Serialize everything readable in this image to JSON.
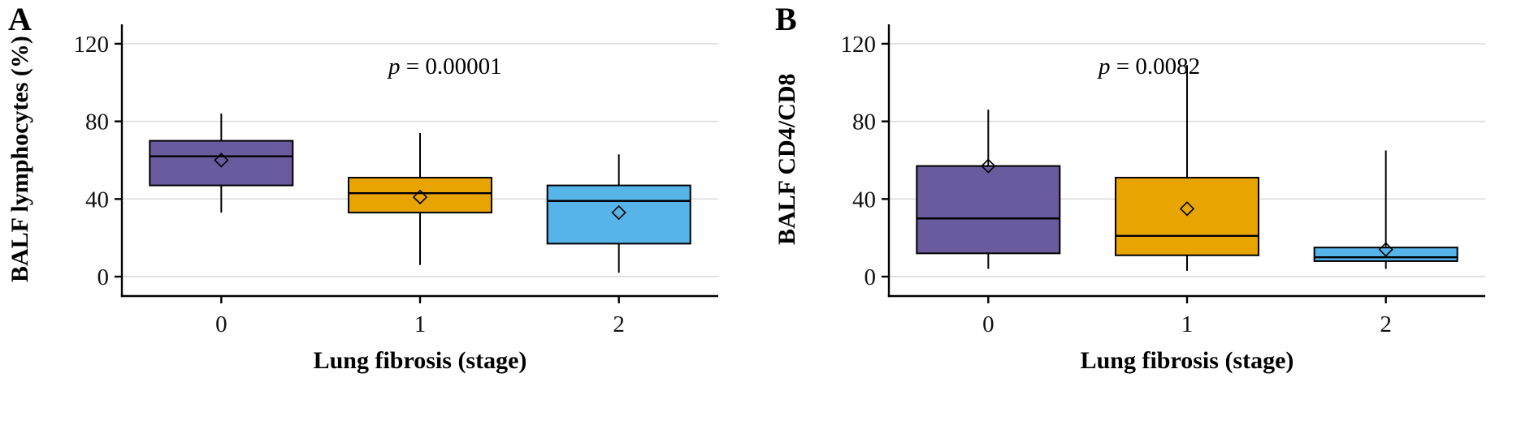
{
  "chart_data": [
    {
      "type": "box",
      "panel_label": "A",
      "xlabel": "Lung fibrosis (stage)",
      "ylabel": "BALF lymphocytes (%)",
      "p_var": "p",
      "p_rest": " = 0.00001",
      "categories": [
        "0",
        "1",
        "2"
      ],
      "yticks": [
        0,
        40,
        80,
        120
      ],
      "ylim": [
        -10,
        130
      ],
      "grid": true,
      "legend": "none",
      "series": [
        {
          "category": "0",
          "color": "#6A5A9E",
          "whisker_low": 33,
          "q1": 47,
          "median": 62,
          "q3": 70,
          "whisker_high": 84,
          "mean": 60
        },
        {
          "category": "1",
          "color": "#E8A400",
          "whisker_low": 6,
          "q1": 33,
          "median": 43,
          "q3": 51,
          "whisker_high": 74,
          "mean": 41
        },
        {
          "category": "2",
          "color": "#56B4E9",
          "whisker_low": 2,
          "q1": 17,
          "median": 39,
          "q3": 47,
          "whisker_high": 63,
          "mean": 33
        }
      ]
    },
    {
      "type": "box",
      "panel_label": "B",
      "xlabel": "Lung fibrosis (stage)",
      "ylabel": "BALF CD4/CD8",
      "p_var": "p",
      "p_rest": " = 0.0082",
      "categories": [
        "0",
        "1",
        "2"
      ],
      "yticks": [
        0,
        40,
        80,
        120
      ],
      "ylim": [
        -10,
        130
      ],
      "grid": true,
      "legend": "none",
      "series": [
        {
          "category": "0",
          "color": "#6A5A9E",
          "whisker_low": 4,
          "q1": 12,
          "median": 30,
          "q3": 57,
          "whisker_high": 86,
          "mean": 57
        },
        {
          "category": "1",
          "color": "#E8A400",
          "whisker_low": 3,
          "q1": 11,
          "median": 21,
          "q3": 51,
          "whisker_high": 109,
          "mean": 35
        },
        {
          "category": "2",
          "color": "#56B4E9",
          "whisker_low": 4,
          "q1": 8,
          "median": 10,
          "q3": 15,
          "whisker_high": 65,
          "mean": 14
        }
      ]
    }
  ]
}
